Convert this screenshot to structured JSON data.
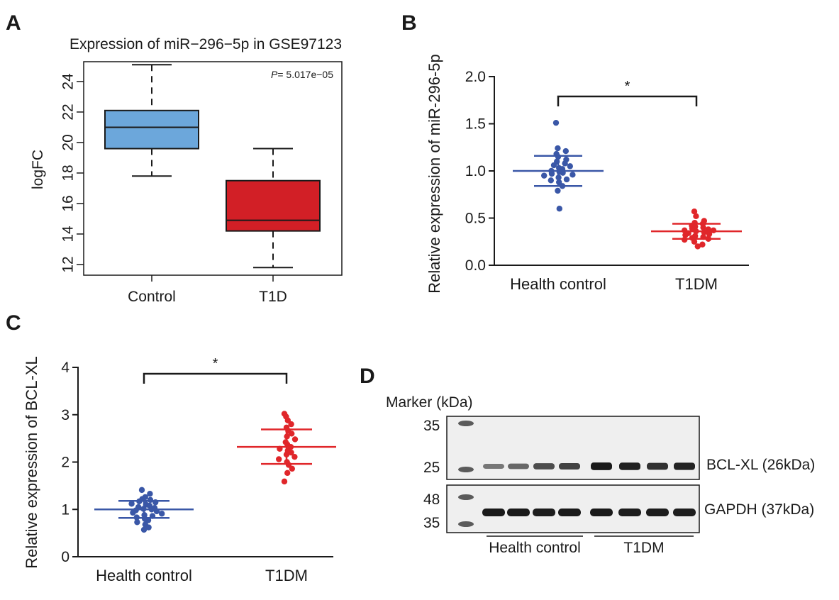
{
  "panels": {
    "A": {
      "label": "A"
    },
    "B": {
      "label": "B"
    },
    "C": {
      "label": "C"
    },
    "D": {
      "label": "D"
    }
  },
  "chart_data": [
    {
      "id": "A",
      "type": "box",
      "title": "Expression of miR−296−5p in GSE97123",
      "xlabel": "",
      "ylabel": "logFC",
      "ylim": [
        11.3,
        25.3
      ],
      "yticks": [
        12,
        14,
        16,
        18,
        20,
        22,
        24
      ],
      "categories": [
        "Control",
        "T1D"
      ],
      "annotation": {
        "p_symbol": "P",
        "p_text": "= 5.017e−05"
      },
      "boxes": [
        {
          "name": "Control",
          "whisker_low": 17.8,
          "q1": 19.6,
          "median": 21.0,
          "q3": 22.1,
          "whisker_high": 25.1,
          "color": "#6ca7db"
        },
        {
          "name": "T1D",
          "whisker_low": 11.8,
          "q1": 14.2,
          "median": 14.9,
          "q3": 17.5,
          "whisker_high": 19.6,
          "color": "#d21f26"
        }
      ]
    },
    {
      "id": "B",
      "type": "scatter",
      "title": "",
      "xlabel": "",
      "ylabel": "Relative expression of miR-296-5p",
      "ylim": [
        0,
        2.0
      ],
      "yticks": [
        "0.0",
        "0.5",
        "1.0",
        "1.5",
        "2.0"
      ],
      "yticks_values": [
        0,
        0.5,
        1.0,
        1.5,
        2.0
      ],
      "categories": [
        "Health control",
        "T1DM"
      ],
      "significance": "*",
      "series": [
        {
          "name": "Health control",
          "color": "#3a57a7",
          "mean": 1.0,
          "sd_low": 0.84,
          "sd_high": 1.16,
          "values": [
            1.51,
            1.24,
            1.21,
            1.18,
            1.15,
            1.12,
            1.1,
            1.08,
            1.06,
            1.05,
            1.03,
            1.02,
            1.0,
            0.99,
            0.98,
            0.97,
            0.96,
            0.95,
            0.93,
            0.91,
            0.9,
            0.88,
            0.84,
            0.79,
            0.6
          ]
        },
        {
          "name": "T1DM",
          "color": "#e0262a",
          "mean": 0.36,
          "sd_low": 0.28,
          "sd_high": 0.44,
          "values": [
            0.57,
            0.52,
            0.47,
            0.45,
            0.44,
            0.42,
            0.41,
            0.4,
            0.39,
            0.38,
            0.37,
            0.37,
            0.36,
            0.35,
            0.34,
            0.33,
            0.32,
            0.31,
            0.3,
            0.29,
            0.28,
            0.27,
            0.25,
            0.22,
            0.2
          ]
        }
      ]
    },
    {
      "id": "C",
      "type": "scatter",
      "title": "",
      "xlabel": "",
      "ylabel": "Relative expression of BCL-XL",
      "ylim": [
        0,
        4
      ],
      "yticks": [
        "0",
        "1",
        "2",
        "3",
        "4"
      ],
      "yticks_values": [
        0,
        1,
        2,
        3,
        4
      ],
      "categories": [
        "Health control",
        "T1DM"
      ],
      "significance": "*",
      "series": [
        {
          "name": "Health control",
          "color": "#3a57a7",
          "mean": 1.0,
          "sd_low": 0.82,
          "sd_high": 1.18,
          "values": [
            1.41,
            1.33,
            1.26,
            1.22,
            1.2,
            1.17,
            1.15,
            1.12,
            1.1,
            1.08,
            1.05,
            1.03,
            1.01,
            1.0,
            0.98,
            0.96,
            0.93,
            0.91,
            0.88,
            0.86,
            0.83,
            0.8,
            0.77,
            0.73,
            0.68,
            0.62,
            0.57
          ]
        },
        {
          "name": "T1DM",
          "color": "#e0262a",
          "mean": 2.32,
          "sd_low": 1.96,
          "sd_high": 2.69,
          "values": [
            3.02,
            2.96,
            2.88,
            2.8,
            2.73,
            2.66,
            2.6,
            2.54,
            2.48,
            2.42,
            2.37,
            2.32,
            2.28,
            2.24,
            2.2,
            2.16,
            2.11,
            2.06,
            2.0,
            1.94,
            1.86,
            1.77,
            1.59
          ]
        }
      ]
    },
    {
      "id": "D",
      "type": "western-blot",
      "marker_title": "Marker (kDa)",
      "top_blot": {
        "protein_label": "BCL-XL (26kDa)",
        "markers": [
          "35",
          "25"
        ],
        "band_intensity": [
          0.35,
          0.45,
          0.62,
          0.68,
          0.95,
          0.9,
          0.8,
          0.88
        ]
      },
      "bottom_blot": {
        "protein_label": "GAPDH (37kDa)",
        "markers": [
          "48",
          "35"
        ],
        "band_intensity": [
          0.95,
          0.95,
          0.93,
          0.95,
          0.95,
          0.93,
          0.93,
          0.92
        ]
      },
      "groups": [
        {
          "label": "Health control",
          "lanes": 4
        },
        {
          "label": "T1DM",
          "lanes": 4
        }
      ]
    }
  ]
}
